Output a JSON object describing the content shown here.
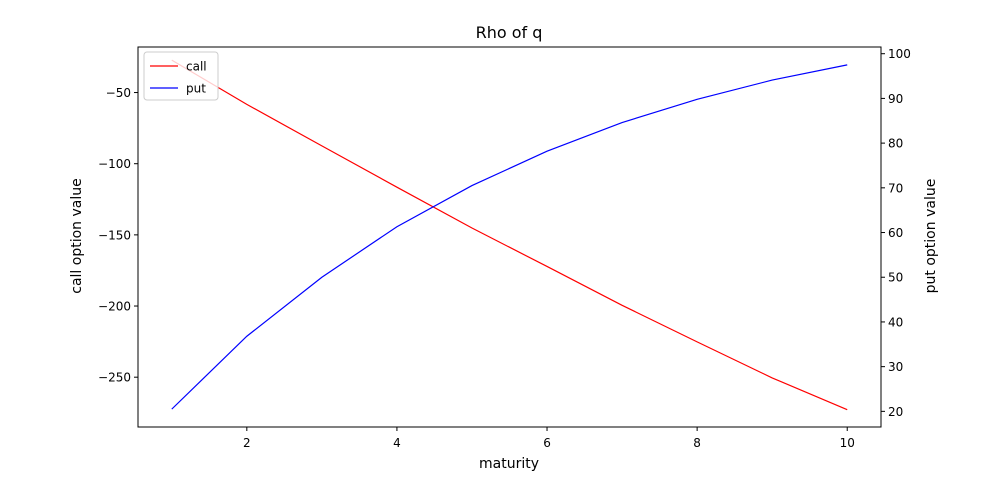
{
  "chart_data": {
    "type": "line",
    "title": "Rho of q",
    "xlabel": "maturity",
    "ylabel_left": "call option value",
    "ylabel_right": "put option value",
    "xlim": [
      0.55,
      10.45
    ],
    "ylim_left": [
      -285,
      -18
    ],
    "ylim_right": [
      16.5,
      101.5
    ],
    "x_ticks": [
      2,
      4,
      6,
      8,
      10
    ],
    "y_ticks_left": [
      -50,
      -100,
      -150,
      -200,
      -250
    ],
    "y_ticks_right": [
      20,
      30,
      40,
      50,
      60,
      70,
      80,
      90,
      100
    ],
    "grid": false,
    "legend": {
      "position": "top-left",
      "entries": [
        {
          "label": "call",
          "color": "#ff0000"
        },
        {
          "label": "put",
          "color": "#0000ff"
        }
      ]
    },
    "series": [
      {
        "name": "call",
        "axis": "left",
        "color": "#ff0000",
        "x": [
          1,
          2,
          3,
          4,
          5,
          6,
          7,
          8,
          9,
          10
        ],
        "values": [
          -27.2,
          -58.3,
          -87.5,
          -116.5,
          -145.2,
          -172.2,
          -199.5,
          -225.2,
          -250.5,
          -272.8
        ]
      },
      {
        "name": "put",
        "axis": "right",
        "color": "#0000ff",
        "x": [
          1,
          2,
          3,
          4,
          5,
          6,
          7,
          8,
          9,
          10
        ],
        "values": [
          20.5,
          36.8,
          50.0,
          61.3,
          70.5,
          78.2,
          84.6,
          89.8,
          94.1,
          97.5
        ]
      }
    ]
  }
}
